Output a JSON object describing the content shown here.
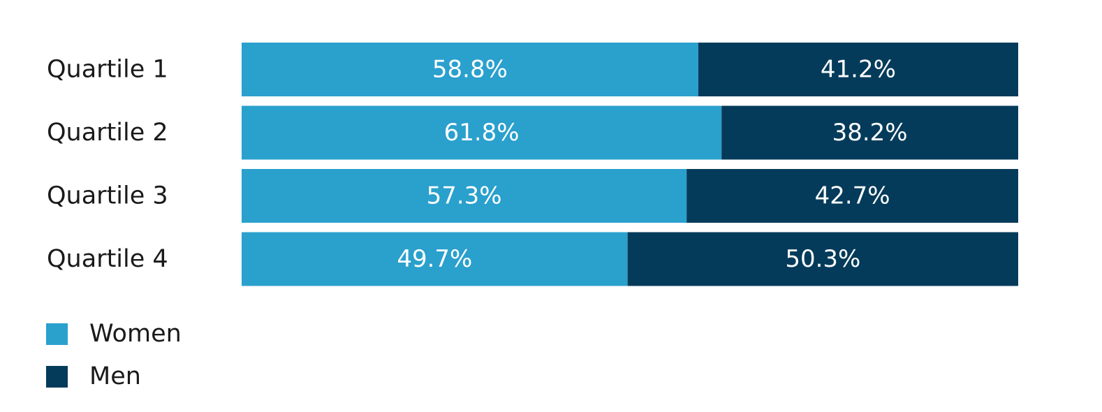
{
  "chart_data": {
    "type": "bar",
    "orientation": "horizontal",
    "stacked": true,
    "categories": [
      "Quartile 1",
      "Quartile 2",
      "Quartile 3",
      "Quartile 4"
    ],
    "series": [
      {
        "name": "Women",
        "color": "#2aa0cd",
        "values": [
          58.8,
          61.8,
          57.3,
          49.7
        ],
        "labels": [
          "58.8%",
          "61.8%",
          "57.3%",
          "49.7%"
        ]
      },
      {
        "name": "Men",
        "color": "#043b5a",
        "values": [
          41.2,
          38.2,
          42.7,
          50.3
        ],
        "labels": [
          "41.2%",
          "38.2%",
          "42.7%",
          "50.3%"
        ]
      }
    ],
    "xlim": [
      0,
      100
    ],
    "grid": false,
    "legend_position": "bottom-left"
  }
}
